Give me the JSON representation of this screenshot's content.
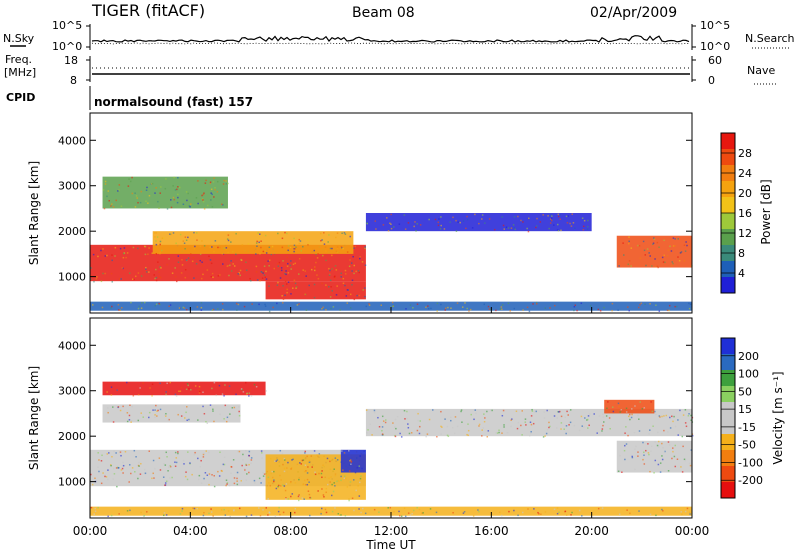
{
  "header": {
    "title": "TIGER (fitACF)",
    "beam": "Beam 08",
    "date": "02/Apr/2009"
  },
  "strips": {
    "nsky_label": "N.Sky",
    "nsky_top": "10^5",
    "nsky_bottom": "10^0",
    "nsearch_label": "N.Search",
    "nsearch_top": "10^5",
    "nsearch_bottom": "10^0",
    "freq_label_1": "Freq.",
    "freq_label_2": "[MHz]",
    "freq_top": "18",
    "freq_bottom": "8",
    "nave_label": "Nave",
    "nave_top": "60",
    "nave_bottom": "0",
    "cpid_label": "CPID",
    "cpid_text": "normalsound (fast) 157"
  },
  "chart_data": [
    {
      "type": "heatmap",
      "name": "power-panel",
      "ylabel": "Slant Range [km]",
      "ylim": [
        200,
        4600
      ],
      "yticks": [
        "1000",
        "2000",
        "3000",
        "4000"
      ],
      "ytick_values": [
        1000,
        2000,
        3000,
        4000
      ],
      "xlim_hours": [
        0,
        24
      ],
      "colorbar": {
        "label": "Power [dB]",
        "ticks": [
          "4",
          "8",
          "12",
          "16",
          "20",
          "24",
          "28"
        ],
        "colors": [
          "#1f1fd6",
          "#1e5fb8",
          "#3a8a7a",
          "#5aa04c",
          "#9ec93a",
          "#f2c218",
          "#f5a30f",
          "#f27e10",
          "#ee4a10",
          "#e6170f"
        ]
      },
      "bands": [
        {
          "start": 0.0,
          "end": 11.0,
          "range_lo": 900,
          "range_hi": 1700,
          "color": "#e6170f"
        },
        {
          "start": 2.5,
          "end": 10.5,
          "range_lo": 1500,
          "range_hi": 2000,
          "color": "#f5a30f"
        },
        {
          "start": 0.5,
          "end": 5.5,
          "range_lo": 2500,
          "range_hi": 3200,
          "color": "#5aa04c"
        },
        {
          "start": 7.0,
          "end": 11.0,
          "range_lo": 500,
          "range_hi": 900,
          "color": "#e6170f"
        },
        {
          "start": 11.0,
          "end": 20.0,
          "range_lo": 2000,
          "range_hi": 2400,
          "color": "#1f1fd6"
        },
        {
          "start": 21.0,
          "end": 24.0,
          "range_lo": 1200,
          "range_hi": 1900,
          "color": "#ee4a10"
        },
        {
          "start": 0.0,
          "end": 24.0,
          "range_lo": 250,
          "range_hi": 450,
          "color": "#1e5fb8"
        }
      ]
    },
    {
      "type": "heatmap",
      "name": "velocity-panel",
      "ylabel": "Slant Range [km]",
      "ylim": [
        200,
        4600
      ],
      "yticks": [
        "1000",
        "2000",
        "3000",
        "4000"
      ],
      "ytick_values": [
        1000,
        2000,
        3000,
        4000
      ],
      "xlim_hours": [
        0,
        24
      ],
      "xticks": [
        "00:00",
        "04:00",
        "08:00",
        "12:00",
        "16:00",
        "20:00",
        "00:00"
      ],
      "xtick_values": [
        0,
        4,
        8,
        12,
        16,
        20,
        24
      ],
      "xlabel": "Time UT",
      "colorbar": {
        "label": "Velocity [m s⁻¹]",
        "ticks": [
          "-200",
          "-100",
          "-50",
          "-15",
          "15",
          "50",
          "100",
          "200"
        ],
        "colors": [
          "#e60f0f",
          "#ee4a10",
          "#f27e10",
          "#f5b01a",
          "#c8c8c8",
          "#c8c8c8",
          "#8ad060",
          "#3da03d",
          "#2a6ac0",
          "#1f2fd6"
        ]
      },
      "bands": [
        {
          "start": 0.0,
          "end": 11.0,
          "range_lo": 900,
          "range_hi": 1700,
          "color": "#c8c8c8"
        },
        {
          "start": 0.5,
          "end": 6.0,
          "range_lo": 2300,
          "range_hi": 2700,
          "color": "#c8c8c8"
        },
        {
          "start": 0.5,
          "end": 7.0,
          "range_lo": 2900,
          "range_hi": 3200,
          "color": "#e60f0f"
        },
        {
          "start": 7.0,
          "end": 11.0,
          "range_lo": 600,
          "range_hi": 1600,
          "color": "#f5b01a"
        },
        {
          "start": 10.0,
          "end": 11.0,
          "range_lo": 1200,
          "range_hi": 1700,
          "color": "#1f2fd6"
        },
        {
          "start": 11.0,
          "end": 24.0,
          "range_lo": 2000,
          "range_hi": 2600,
          "color": "#c8c8c8"
        },
        {
          "start": 21.0,
          "end": 24.0,
          "range_lo": 1200,
          "range_hi": 1900,
          "color": "#c8c8c8"
        },
        {
          "start": 20.5,
          "end": 22.5,
          "range_lo": 2500,
          "range_hi": 2800,
          "color": "#ee4a10"
        },
        {
          "start": 0.0,
          "end": 24.0,
          "range_lo": 250,
          "range_hi": 450,
          "color": "#f5b01a"
        }
      ]
    }
  ]
}
